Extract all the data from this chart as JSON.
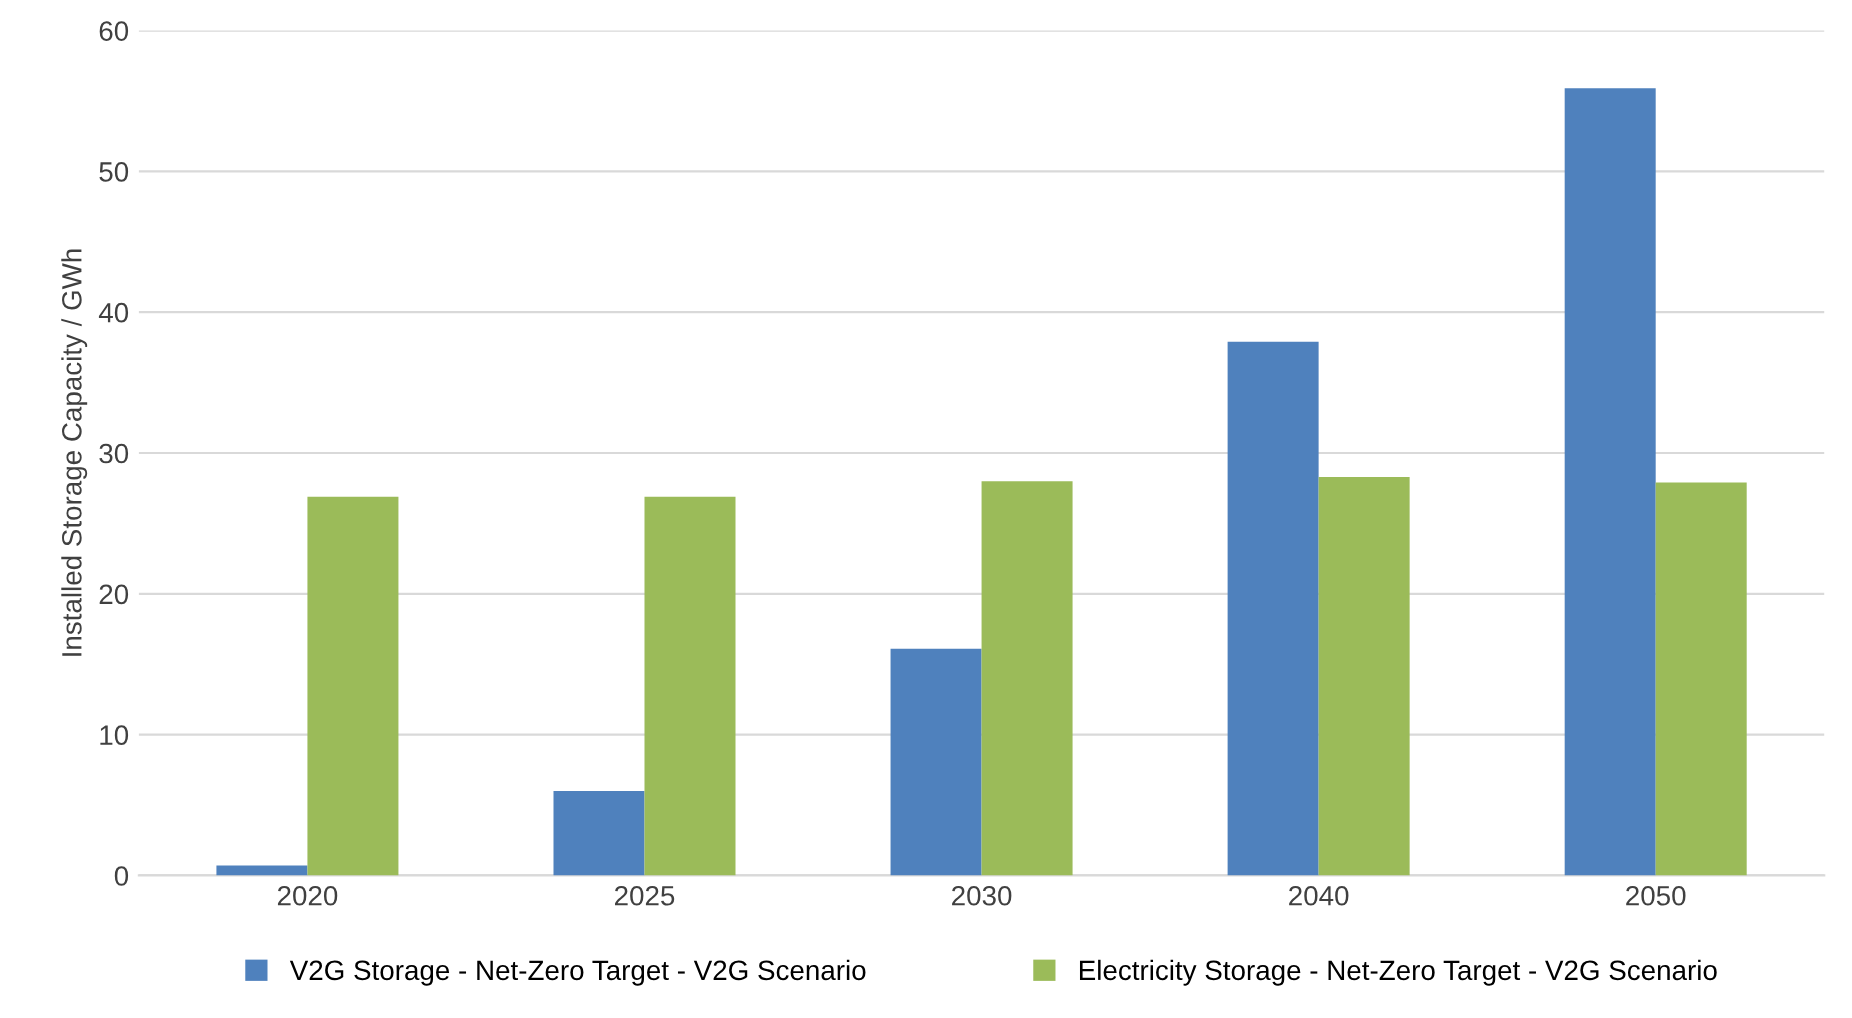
{
  "chart_data": {
    "type": "bar",
    "ylabel": "Installed Storage Capacity / GWh",
    "categories": [
      "2020",
      "2025",
      "2030",
      "2040",
      "2050"
    ],
    "series": [
      {
        "name": "V2G Storage - Net-Zero Target - V2G Scenario",
        "color": "#4f81bd",
        "values": [
          0.7,
          6,
          16.1,
          37.9,
          55.9
        ]
      },
      {
        "name": "Electricity Storage - Net-Zero Target - V2G Scenario",
        "color": "#9bbb59",
        "values": [
          26.9,
          26.9,
          28,
          28.3,
          27.9
        ]
      }
    ],
    "ylim": [
      0,
      60
    ],
    "yticks": [
      0,
      10,
      20,
      30,
      40,
      50,
      60
    ],
    "grid": "y",
    "legend": "bottom"
  }
}
